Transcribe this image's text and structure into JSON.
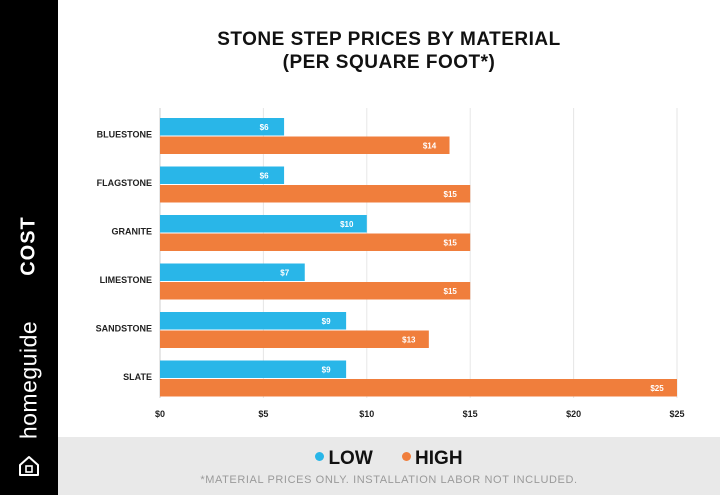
{
  "sidebar": {
    "section_label": "COST",
    "brand": "homeguide",
    "logo_icon": "house-icon"
  },
  "chart_data": {
    "type": "bar",
    "orientation": "horizontal",
    "title_lines": [
      "STONE STEP PRICES BY MATERIAL",
      "(PER SQUARE FOOT*)"
    ],
    "categories": [
      "BLUESTONE",
      "FLAGSTONE",
      "GRANITE",
      "LIMESTONE",
      "SANDSTONE",
      "SLATE"
    ],
    "series": [
      {
        "name": "LOW",
        "color": "#29b6e8",
        "values": [
          6,
          6,
          10,
          7,
          9,
          9
        ],
        "labels": [
          "$6",
          "$6",
          "$10",
          "$7",
          "$9",
          "$9"
        ]
      },
      {
        "name": "HIGH",
        "color": "#f07e3c",
        "values": [
          14,
          15,
          15,
          15,
          13,
          25
        ],
        "labels": [
          "$14",
          "$15",
          "$15",
          "$15",
          "$13",
          "$25"
        ]
      }
    ],
    "xlim": [
      0,
      25
    ],
    "x_ticks": [
      0,
      5,
      10,
      15,
      20,
      25
    ],
    "x_tick_labels": [
      "$0",
      "$5",
      "$10",
      "$15",
      "$20",
      "$25"
    ],
    "grid": true,
    "legend_position": "bottom",
    "footnote": "*MATERIAL PRICES ONLY. INSTALLATION LABOR NOT INCLUDED."
  }
}
